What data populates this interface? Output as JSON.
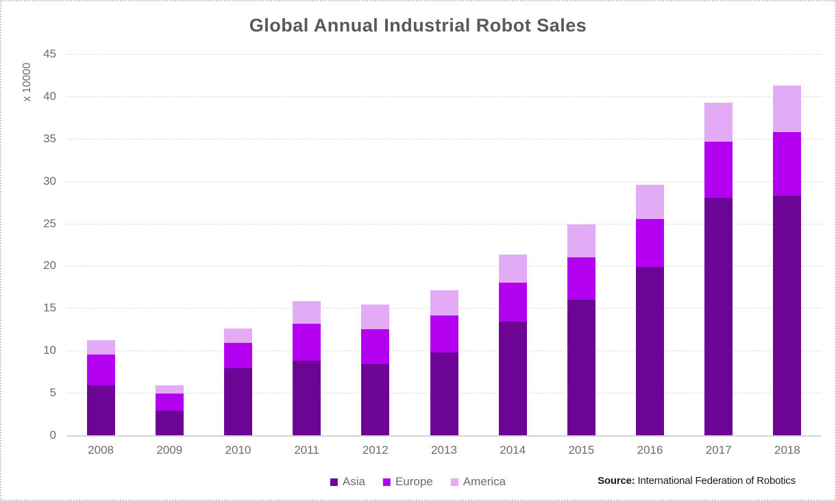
{
  "title": "Global Annual Industrial Robot Sales",
  "source": {
    "label": "Source:",
    "text": "International Federation of Robotics"
  },
  "colors": {
    "asia": "#6C0596",
    "europe": "#B400F0",
    "america": "#E3AAF6",
    "title_text": "#595959",
    "axis_text": "#6B6B6B",
    "gridline": "#DCDCDC",
    "axis_line": "#D4D4D4"
  },
  "chart_data": {
    "type": "bar",
    "stacked": true,
    "title": "Global Annual Industrial Robot Sales",
    "xlabel": "",
    "ylabel": "x 10000",
    "ylim": [
      0,
      45
    ],
    "yticks": [
      0,
      5,
      10,
      15,
      20,
      25,
      30,
      35,
      40,
      45
    ],
    "grid": true,
    "legend_position": "bottom-center",
    "categories": [
      "2008",
      "2009",
      "2010",
      "2011",
      "2012",
      "2013",
      "2014",
      "2015",
      "2016",
      "2017",
      "2018"
    ],
    "series": [
      {
        "name": "Asia",
        "color": "#6C0596",
        "values": [
          5.9,
          2.9,
          7.9,
          8.8,
          8.4,
          9.8,
          13.4,
          16.0,
          19.9,
          28.0,
          28.3
        ]
      },
      {
        "name": "Europe",
        "color": "#B400F0",
        "values": [
          3.6,
          2.0,
          3.0,
          4.4,
          4.1,
          4.3,
          4.6,
          5.0,
          5.6,
          6.7,
          7.5
        ]
      },
      {
        "name": "America",
        "color": "#E3AAF6",
        "values": [
          1.7,
          1.0,
          1.7,
          2.6,
          2.9,
          3.0,
          3.3,
          3.9,
          4.1,
          4.6,
          5.5
        ]
      }
    ]
  }
}
